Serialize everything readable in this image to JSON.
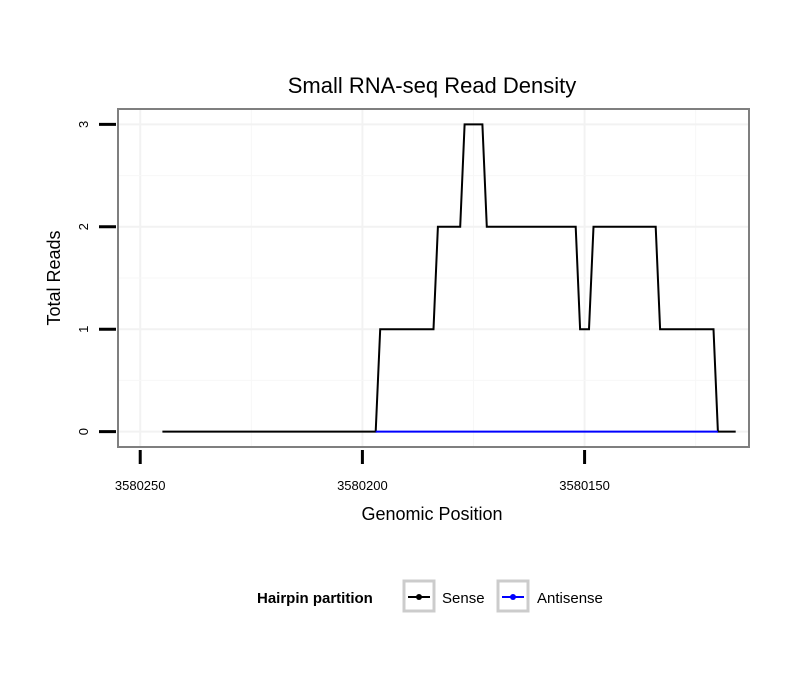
{
  "chart_data": {
    "type": "line",
    "title": "Small RNA-seq Read Density",
    "xlabel": "Genomic Position",
    "ylabel": "Total Reads",
    "xlim": [
      3580255,
      3580113
    ],
    "x_reversed": true,
    "ylim": [
      -0.15,
      3.15
    ],
    "x_ticks": [
      3580250,
      3580200,
      3580150
    ],
    "x_tick_labels": [
      "3580250",
      "3580200",
      "3580150"
    ],
    "y_ticks": [
      0,
      1,
      2,
      3
    ],
    "y_tick_labels": [
      "0",
      "1",
      "2",
      "3"
    ],
    "grid": true,
    "legend": {
      "title": "Hairpin partition",
      "placement": "bottom",
      "entries": [
        "Sense",
        "Antisense"
      ]
    },
    "series": [
      {
        "name": "Sense",
        "color": "#000000",
        "points": [
          [
            3580245,
            0
          ],
          [
            3580197,
            0
          ],
          [
            3580196,
            1
          ],
          [
            3580184,
            1
          ],
          [
            3580183,
            2
          ],
          [
            3580178,
            2
          ],
          [
            3580177,
            3
          ],
          [
            3580173,
            3
          ],
          [
            3580172,
            2
          ],
          [
            3580152,
            2
          ],
          [
            3580151,
            1
          ],
          [
            3580149,
            1
          ],
          [
            3580148,
            2
          ],
          [
            3580134,
            2
          ],
          [
            3580133,
            1
          ],
          [
            3580121,
            1
          ],
          [
            3580120,
            0
          ],
          [
            3580116,
            0
          ]
        ]
      },
      {
        "name": "Antisense",
        "color": "#0000ff",
        "points": [
          [
            3580197,
            0
          ],
          [
            3580120,
            0
          ]
        ]
      }
    ]
  }
}
